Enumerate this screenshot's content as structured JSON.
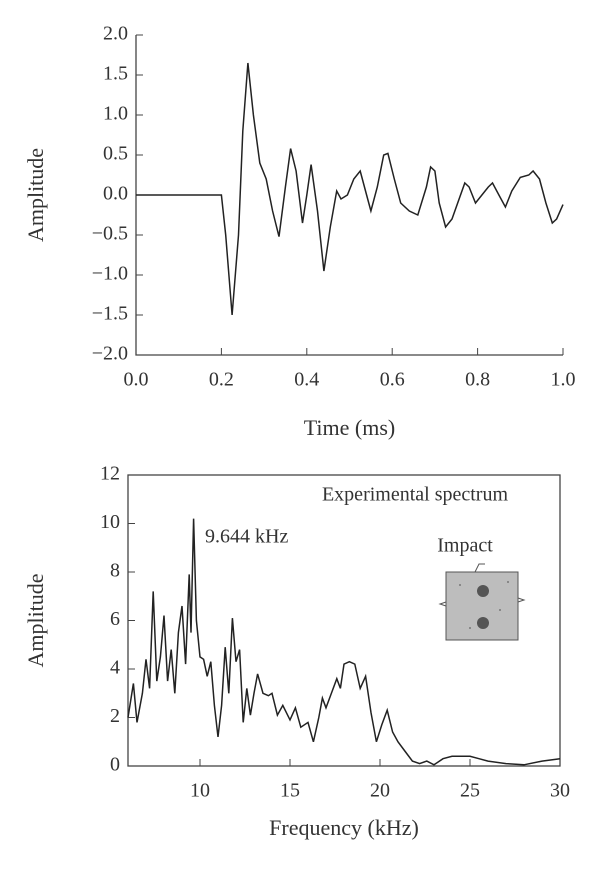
{
  "chart_data": [
    {
      "type": "line",
      "xlabel": "Time (ms)",
      "ylabel": "Amplitude",
      "xlim": [
        0,
        1
      ],
      "ylim": [
        -2,
        2
      ],
      "xticks": [
        {
          "value": 0,
          "label": "0.0"
        },
        {
          "value": 0.2,
          "label": "0.2"
        },
        {
          "value": 0.4,
          "label": "0.4"
        },
        {
          "value": 0.6,
          "label": "0.6"
        },
        {
          "value": 0.8,
          "label": "0.8"
        },
        {
          "value": 1,
          "label": "1.0"
        }
      ],
      "yticks": [
        {
          "value": -2,
          "label": "−2.0"
        },
        {
          "value": -1.5,
          "label": "−1.5"
        },
        {
          "value": -1,
          "label": "−1.0"
        },
        {
          "value": -0.5,
          "label": "−0.5"
        },
        {
          "value": 0,
          "label": "0.0"
        },
        {
          "value": 0.5,
          "label": "0.5"
        },
        {
          "value": 1,
          "label": "1.0"
        },
        {
          "value": 1.5,
          "label": "1.5"
        },
        {
          "value": 2,
          "label": "2.0"
        }
      ],
      "color": "#222",
      "x": [
        0,
        0.19,
        0.2,
        0.21,
        0.225,
        0.24,
        0.25,
        0.262,
        0.275,
        0.29,
        0.305,
        0.32,
        0.335,
        0.35,
        0.362,
        0.375,
        0.39,
        0.4,
        0.41,
        0.425,
        0.44,
        0.455,
        0.47,
        0.48,
        0.495,
        0.51,
        0.525,
        0.54,
        0.55,
        0.565,
        0.58,
        0.59,
        0.605,
        0.62,
        0.64,
        0.66,
        0.68,
        0.69,
        0.7,
        0.71,
        0.725,
        0.74,
        0.77,
        0.78,
        0.795,
        0.81,
        0.825,
        0.835,
        0.85,
        0.865,
        0.88,
        0.9,
        0.92,
        0.93,
        0.945,
        0.96,
        0.975,
        0.985,
        1.0
      ],
      "values": [
        0,
        0,
        0,
        -0.5,
        -1.5,
        -0.5,
        0.8,
        1.65,
        1.0,
        0.4,
        0.2,
        -0.2,
        -0.52,
        0.1,
        0.58,
        0.3,
        -0.35,
        0.0,
        0.38,
        -0.2,
        -0.95,
        -0.4,
        0.05,
        -0.05,
        0.0,
        0.2,
        0.3,
        0.0,
        -0.2,
        0.1,
        0.5,
        0.52,
        0.2,
        -0.1,
        -0.2,
        -0.25,
        0.1,
        0.35,
        0.3,
        -0.1,
        -0.4,
        -0.3,
        0.15,
        0.1,
        -0.1,
        0.0,
        0.1,
        0.15,
        0.0,
        -0.15,
        0.05,
        0.22,
        0.25,
        0.3,
        0.2,
        -0.1,
        -0.35,
        -0.3,
        -0.12
      ]
    },
    {
      "type": "line",
      "xlabel": "Frequency (kHz)",
      "ylabel": "Amplitude",
      "annotations": [
        "Experimental spectrum",
        "9.644 kHz",
        "Impact"
      ],
      "xlim": [
        6,
        30
      ],
      "ylim": [
        0,
        12
      ],
      "xticks": [
        10,
        15,
        20,
        25,
        30
      ],
      "yticks": [
        0,
        2,
        4,
        6,
        8,
        10,
        12
      ],
      "color": "#222",
      "x": [
        6,
        6.3,
        6.5,
        6.8,
        7.0,
        7.2,
        7.4,
        7.6,
        7.8,
        8.0,
        8.2,
        8.4,
        8.6,
        8.8,
        9.0,
        9.2,
        9.4,
        9.5,
        9.644,
        9.8,
        10.0,
        10.2,
        10.4,
        10.6,
        10.8,
        11.0,
        11.2,
        11.4,
        11.6,
        11.8,
        12.0,
        12.2,
        12.4,
        12.6,
        12.8,
        13.0,
        13.2,
        13.5,
        13.8,
        14.0,
        14.3,
        14.6,
        15.0,
        15.3,
        15.6,
        16.0,
        16.3,
        16.6,
        16.8,
        17.0,
        17.3,
        17.6,
        17.8,
        18.0,
        18.3,
        18.6,
        18.9,
        19.2,
        19.5,
        19.8,
        20.1,
        20.4,
        20.7,
        21.0,
        21.4,
        21.8,
        22.2,
        22.6,
        23.0,
        23.5,
        24,
        25,
        25.5,
        26,
        27,
        28,
        29,
        30
      ],
      "values": [
        2.0,
        3.4,
        1.8,
        3.0,
        4.4,
        3.2,
        7.2,
        3.5,
        4.5,
        6.2,
        3.5,
        4.8,
        3.0,
        5.5,
        6.6,
        4.2,
        7.9,
        5.5,
        10.2,
        6.0,
        4.5,
        4.4,
        3.7,
        4.3,
        2.5,
        1.2,
        2.5,
        4.9,
        3.0,
        6.1,
        4.3,
        4.8,
        1.8,
        3.2,
        2.1,
        3.0,
        3.8,
        3.0,
        2.9,
        3.0,
        2.1,
        2.5,
        1.9,
        2.4,
        1.6,
        1.8,
        1.0,
        2.0,
        2.8,
        2.4,
        3.0,
        3.6,
        3.2,
        4.2,
        4.3,
        4.2,
        3.2,
        3.7,
        2.2,
        1.0,
        1.7,
        2.3,
        1.4,
        1.0,
        0.6,
        0.2,
        0.1,
        0.2,
        0.05,
        0.3,
        0.4,
        0.4,
        0.3,
        0.2,
        0.1,
        0.05,
        0.2,
        0.3
      ]
    }
  ]
}
